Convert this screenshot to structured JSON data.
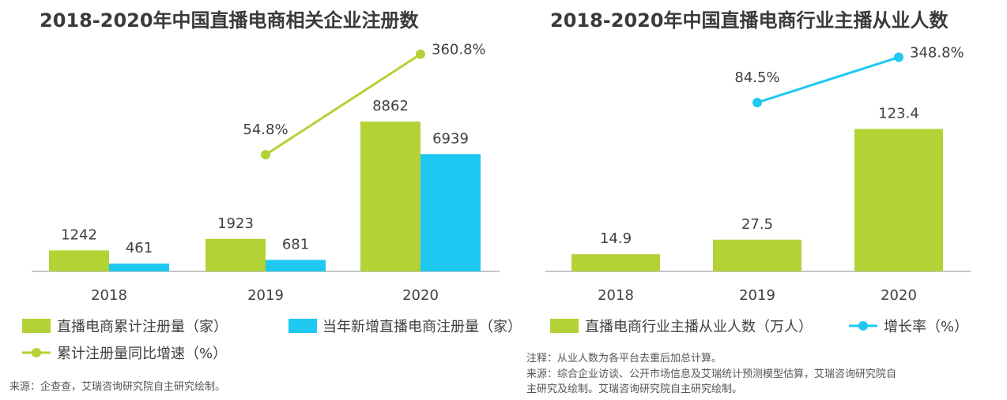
{
  "chart_data": [
    {
      "type": "bar",
      "title": "2018-2020年中国直播电商相关企业注册数",
      "categories": [
        "2018",
        "2019",
        "2020"
      ],
      "series": [
        {
          "name": "直播电商累计注册量（家）",
          "type": "bar",
          "color": "#b3d235",
          "values": [
            1242,
            1923,
            8862
          ],
          "labels": [
            "1242",
            "1923",
            "8862"
          ]
        },
        {
          "name": "当年新增直播电商注册量（家）",
          "type": "bar",
          "color": "#1ec8f0",
          "values": [
            461,
            681,
            6939
          ],
          "labels": [
            "461",
            "681",
            "6939"
          ]
        },
        {
          "name": "累计注册量同比增速（%）",
          "type": "line",
          "color": "#b3d235",
          "values": [
            null,
            54.8,
            360.8
          ],
          "labels": [
            "",
            "54.8%",
            "360.8%"
          ]
        }
      ],
      "bar_ylim": [
        0,
        14000
      ],
      "line_ylim": [
        -300,
        420
      ],
      "source": "来源：企查查，艾瑞咨询研究院自主研究绘制。"
    },
    {
      "type": "bar",
      "title": "2018-2020年中国直播电商行业主播从业人数",
      "categories": [
        "2018",
        "2019",
        "2020"
      ],
      "series": [
        {
          "name": "直播电商行业主播从业人数（万人）",
          "type": "bar",
          "color": "#b3d235",
          "values": [
            14.9,
            27.5,
            123.4
          ],
          "labels": [
            "14.9",
            "27.5",
            "123.4"
          ]
        },
        {
          "name": "增长率（%）",
          "type": "line",
          "color": "#1ec8f0",
          "values": [
            null,
            84.5,
            348.8
          ],
          "labels": [
            "",
            "84.5%",
            "348.8%"
          ]
        }
      ],
      "bar_ylim": [
        0,
        205
      ],
      "line_ylim": [
        -900,
        480
      ],
      "notes": [
        "注释：从业人数为各平台去重后加总计算。",
        "来源：综合企业访谈、公开市场信息及艾瑞统计预测模型估算，艾瑞咨询研究院自",
        "主研究及绘制。艾瑞咨询研究院自主研究绘制。"
      ]
    }
  ]
}
